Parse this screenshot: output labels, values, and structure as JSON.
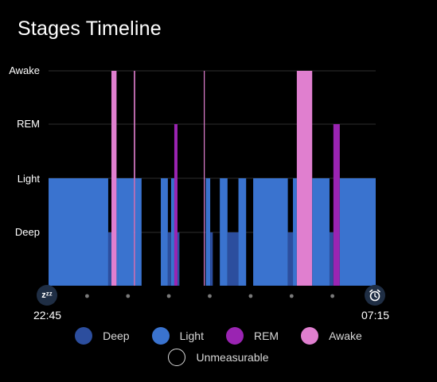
{
  "title": "Stages Timeline",
  "start_time": "22:45",
  "end_time": "07:15",
  "start_icon_text": "zᶻᶻ",
  "colors": {
    "Deep": "#2c4e9e",
    "Light": "#3a73cf",
    "REM": "#9a24b2",
    "Awake": "#e07fcf",
    "grid": "#2e2e2e"
  },
  "legend": [
    {
      "label": "Deep",
      "key": "Deep"
    },
    {
      "label": "Light",
      "key": "Light"
    },
    {
      "label": "REM",
      "key": "REM"
    },
    {
      "label": "Awake",
      "key": "Awake"
    }
  ],
  "legend_extra": {
    "label": "Unmeasurable"
  },
  "icons": {
    "start": "sleep-zzz-icon",
    "end": "alarm-clock-icon"
  },
  "chart_data": {
    "type": "area",
    "title": "Stages Timeline",
    "y_categories": [
      "Deep",
      "Light",
      "REM",
      "Awake"
    ],
    "x_range": [
      "22:45",
      "07:15"
    ],
    "total_minutes": 510,
    "segments": [
      {
        "start": 0,
        "end": 93,
        "stage": "Light"
      },
      {
        "start": 93,
        "end": 98,
        "stage": "Deep"
      },
      {
        "start": 98,
        "end": 106,
        "stage": "Awake"
      },
      {
        "start": 106,
        "end": 108,
        "stage": "Light"
      },
      {
        "start": 108,
        "end": 133,
        "stage": "Light"
      },
      {
        "start": 133,
        "end": 135,
        "stage": "Awake"
      },
      {
        "start": 135,
        "end": 145,
        "stage": "Light"
      },
      {
        "start": 145,
        "end": 175,
        "stage": "Unmeasurable"
      },
      {
        "start": 175,
        "end": 186,
        "stage": "Light"
      },
      {
        "start": 186,
        "end": 191,
        "stage": "Deep"
      },
      {
        "start": 191,
        "end": 196,
        "stage": "Light"
      },
      {
        "start": 196,
        "end": 201,
        "stage": "REM"
      },
      {
        "start": 201,
        "end": 204,
        "stage": "Deep"
      },
      {
        "start": 204,
        "end": 242,
        "stage": "Unmeasurable"
      },
      {
        "start": 242,
        "end": 243,
        "stage": "Awake"
      },
      {
        "start": 243,
        "end": 245,
        "stage": "Unmeasurable"
      },
      {
        "start": 245,
        "end": 252,
        "stage": "Light"
      },
      {
        "start": 252,
        "end": 256,
        "stage": "Deep"
      },
      {
        "start": 256,
        "end": 267,
        "stage": "Unmeasurable"
      },
      {
        "start": 267,
        "end": 279,
        "stage": "Light"
      },
      {
        "start": 279,
        "end": 296,
        "stage": "Deep"
      },
      {
        "start": 296,
        "end": 308,
        "stage": "Light"
      },
      {
        "start": 308,
        "end": 319,
        "stage": "Unmeasurable"
      },
      {
        "start": 319,
        "end": 373,
        "stage": "Light"
      },
      {
        "start": 373,
        "end": 381,
        "stage": "Deep"
      },
      {
        "start": 381,
        "end": 387,
        "stage": "Light"
      },
      {
        "start": 387,
        "end": 411,
        "stage": "Awake"
      },
      {
        "start": 411,
        "end": 438,
        "stage": "Light"
      },
      {
        "start": 438,
        "end": 444,
        "stage": "Deep"
      },
      {
        "start": 444,
        "end": 454,
        "stage": "REM"
      },
      {
        "start": 454,
        "end": 510,
        "stage": "Light"
      }
    ],
    "grid": true,
    "legend_position": "bottom"
  }
}
